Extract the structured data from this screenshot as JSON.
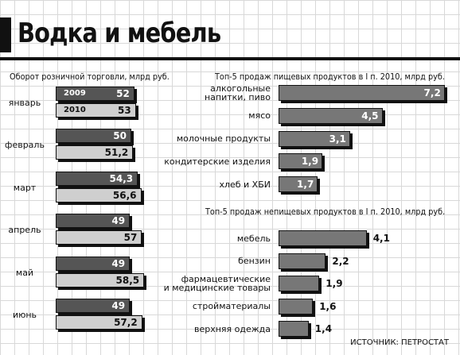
{
  "title": "Водка и мебель",
  "source": "ИСТОЧНИК: ПЕТРОСТАТ",
  "chart_data": [
    {
      "type": "bar",
      "title": "Оборот розничной торговли, млрд руб.",
      "categories": [
        "январь",
        "февраль",
        "март",
        "апрель",
        "май",
        "июнь"
      ],
      "series": [
        {
          "name": "2009",
          "color": "#555555",
          "values": [
            52,
            50,
            54.3,
            49,
            49,
            49
          ],
          "value_labels": [
            "52",
            "50",
            "54,3",
            "49",
            "49",
            "49"
          ]
        },
        {
          "name": "2010",
          "color": "#cfcfcf",
          "values": [
            53,
            51.2,
            56.6,
            57,
            58.5,
            57.2
          ],
          "value_labels": [
            "53",
            "51,2",
            "56,6",
            "57",
            "58,5",
            "57,2"
          ]
        }
      ]
    },
    {
      "type": "bar",
      "title": "Топ-5 продаж пищевых продуктов в I п. 2010, млрд руб.",
      "categories": [
        "алкогольные\nнапитки, пиво",
        "мясо",
        "молочные продукты",
        "кондитерские изделия",
        "хлеб и ХБИ"
      ],
      "values": [
        7.2,
        4.5,
        3.1,
        1.9,
        1.7
      ],
      "value_labels": [
        "7,2",
        "4,5",
        "3,1",
        "1,9",
        "1,7"
      ],
      "color": "#777777"
    },
    {
      "type": "bar",
      "title": "Топ-5 продаж непищевых продуктов в I п. 2010, млрд руб.",
      "categories": [
        "мебель",
        "бензин",
        "фармацевтические\nи медицинские товары",
        "стройматериалы",
        "верхняя одежда"
      ],
      "values": [
        4.1,
        2.2,
        1.9,
        1.6,
        1.4
      ],
      "value_labels": [
        "4,1",
        "2,2",
        "1,9",
        "1,6",
        "1,4"
      ],
      "color": "#777777"
    }
  ]
}
